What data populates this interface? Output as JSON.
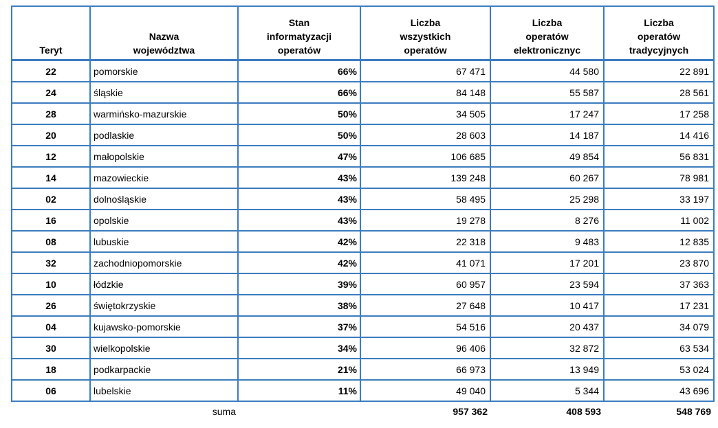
{
  "page": {
    "background_color": "#ffffff",
    "text_color": "#000000"
  },
  "table": {
    "border_color": "#3b7cc0",
    "header": {
      "teryt": "Teryt",
      "name": "Nazwa\nwojewództwa",
      "percent": "Stan\ninformatyzacji\noperatów",
      "total": "Liczba\nwszystkich\noperatów",
      "electronic": "Liczba\noperatów\nelektronicznyc",
      "traditional": "Liczba\noperatów\ntradycyjnych"
    },
    "rows": [
      {
        "teryt": "22",
        "name": "pomorskie",
        "percent": "66%",
        "total": "67 471",
        "electronic": "44 580",
        "traditional": "22 891"
      },
      {
        "teryt": "24",
        "name": "śląskie",
        "percent": "66%",
        "total": "84 148",
        "electronic": "55 587",
        "traditional": "28 561"
      },
      {
        "teryt": "28",
        "name": "warmińsko-mazurskie",
        "percent": "50%",
        "total": "34 505",
        "electronic": "17 247",
        "traditional": "17 258"
      },
      {
        "teryt": "20",
        "name": "podlaskie",
        "percent": "50%",
        "total": "28 603",
        "electronic": "14 187",
        "traditional": "14 416"
      },
      {
        "teryt": "12",
        "name": "małopolskie",
        "percent": "47%",
        "total": "106 685",
        "electronic": "49 854",
        "traditional": "56 831"
      },
      {
        "teryt": "14",
        "name": "mazowieckie",
        "percent": "43%",
        "total": "139 248",
        "electronic": "60 267",
        "traditional": "78 981"
      },
      {
        "teryt": "02",
        "name": "dolnośląskie",
        "percent": "43%",
        "total": "58 495",
        "electronic": "25 298",
        "traditional": "33 197"
      },
      {
        "teryt": "16",
        "name": "opolskie",
        "percent": "43%",
        "total": "19 278",
        "electronic": "8 276",
        "traditional": "11 002"
      },
      {
        "teryt": "08",
        "name": "lubuskie",
        "percent": "42%",
        "total": "22 318",
        "electronic": "9 483",
        "traditional": "12 835"
      },
      {
        "teryt": "32",
        "name": "zachodniopomorskie",
        "percent": "42%",
        "total": "41 071",
        "electronic": "17 201",
        "traditional": "23 870"
      },
      {
        "teryt": "10",
        "name": "łódzkie",
        "percent": "39%",
        "total": "60 957",
        "electronic": "23 594",
        "traditional": "37 363"
      },
      {
        "teryt": "26",
        "name": "świętokrzyskie",
        "percent": "38%",
        "total": "27 648",
        "electronic": "10 417",
        "traditional": "17 231"
      },
      {
        "teryt": "04",
        "name": "kujawsko-pomorskie",
        "percent": "37%",
        "total": "54 516",
        "electronic": "20 437",
        "traditional": "34 079"
      },
      {
        "teryt": "30",
        "name": "wielkopolskie",
        "percent": "34%",
        "total": "96 406",
        "electronic": "32 872",
        "traditional": "63 534"
      },
      {
        "teryt": "18",
        "name": "podkarpackie",
        "percent": "21%",
        "total": "66 973",
        "electronic": "13 949",
        "traditional": "53 024"
      },
      {
        "teryt": "06",
        "name": "lubelskie",
        "percent": "11%",
        "total": "49 040",
        "electronic": "5 344",
        "traditional": "43 696"
      }
    ],
    "summary": {
      "label": "suma",
      "total": "957 362",
      "electronic": "408 593",
      "traditional": "548 769"
    }
  }
}
